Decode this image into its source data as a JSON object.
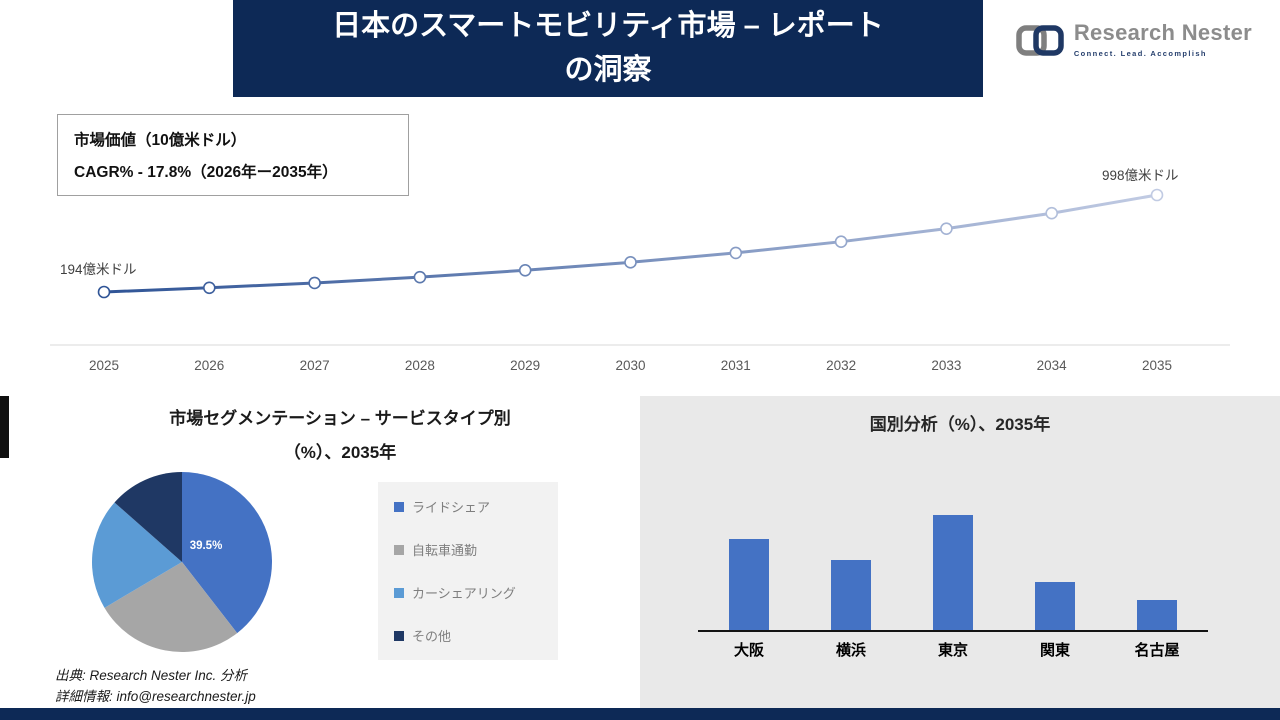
{
  "header": {
    "title_line1": "日本のスマートモビリティ市場 – レポート",
    "title_line2": "の洞察"
  },
  "logo": {
    "name": "Research Nester",
    "tagline": "Connect. Lead. Accomplish"
  },
  "info_box": {
    "line1": "市場価値（10億米ドル）",
    "line2": "CAGR% - 17.8%（2026年ー2035年）"
  },
  "source": {
    "line1": "出典: Research Nester Inc. 分析",
    "line2": "詳細情報: info@researchnester.jp"
  },
  "colors": {
    "banner": "#0d2956",
    "accent_blue": "#4472c4"
  },
  "chart_data": [
    {
      "type": "line",
      "title": "市場価値（10億米ドル）",
      "unit": "億米ドル",
      "x": [
        2025,
        2026,
        2027,
        2028,
        2029,
        2030,
        2031,
        2032,
        2033,
        2034,
        2035
      ],
      "values": [
        194,
        229,
        269,
        317,
        374,
        440,
        518,
        611,
        719,
        847,
        998
      ],
      "start_label": "194億米ドル",
      "end_label": "998億米ドル",
      "cagr": "17.8%",
      "color_start": "#2f5496",
      "color_end": "#c1cbe3",
      "y_axis_visible": false
    },
    {
      "type": "pie",
      "title": "市場セグメンテーション – サービスタイプ別（%）、2035年",
      "title_line1": "市場セグメンテーション – サービスタイプ別",
      "title_line2": "（%）、2035年",
      "labels": [
        "ライドシェア",
        "自転車通勤",
        "カーシェアリング",
        "その他"
      ],
      "values": [
        39.5,
        27,
        20,
        13.5
      ],
      "colors": [
        "#4472c4",
        "#a6a6a6",
        "#5b9bd5",
        "#1f3864"
      ],
      "data_label": "39.5%",
      "legend_position": "right"
    },
    {
      "type": "bar",
      "title": "国別分析（%）、2035年",
      "categories": [
        "大阪",
        "横浜",
        "東京",
        "関東",
        "名古屋"
      ],
      "values": [
        30,
        23,
        38,
        16,
        10
      ],
      "bar_color": "#4472c4",
      "unit": "%"
    }
  ]
}
